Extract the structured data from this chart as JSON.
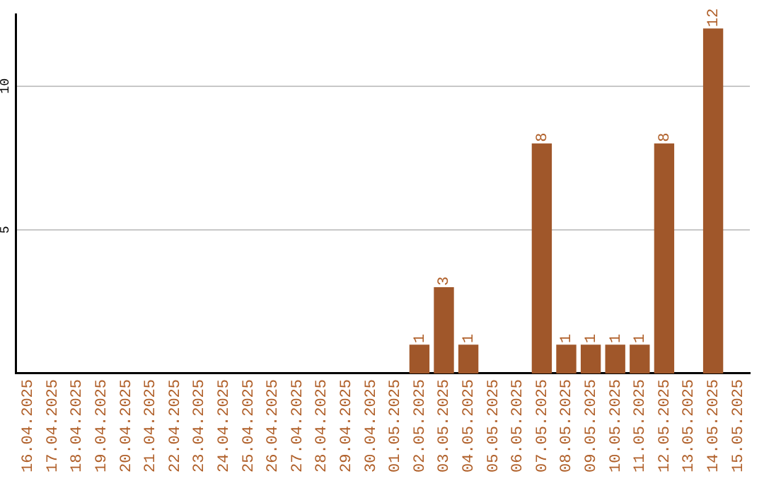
{
  "chart_data": {
    "type": "bar",
    "categories": [
      "16.04.2025",
      "17.04.2025",
      "18.04.2025",
      "19.04.2025",
      "20.04.2025",
      "21.04.2025",
      "22.04.2025",
      "23.04.2025",
      "24.04.2025",
      "25.04.2025",
      "26.04.2025",
      "27.04.2025",
      "28.04.2025",
      "29.04.2025",
      "30.04.2025",
      "01.05.2025",
      "02.05.2025",
      "03.05.2025",
      "04.05.2025",
      "05.05.2025",
      "06.05.2025",
      "07.05.2025",
      "08.05.2025",
      "09.05.2025",
      "10.05.2025",
      "11.05.2025",
      "12.05.2025",
      "13.05.2025",
      "14.05.2025",
      "15.05.2025"
    ],
    "values": [
      0,
      0,
      0,
      0,
      0,
      0,
      0,
      0,
      0,
      0,
      0,
      0,
      0,
      0,
      0,
      0,
      1,
      3,
      1,
      0,
      0,
      8,
      1,
      1,
      1,
      1,
      8,
      0,
      12,
      0
    ],
    "value_labels": [
      null,
      null,
      null,
      null,
      null,
      null,
      null,
      null,
      null,
      null,
      null,
      null,
      null,
      null,
      null,
      null,
      "1",
      "3",
      "1",
      null,
      null,
      "8",
      "1",
      "1",
      "1",
      "1",
      "8",
      null,
      "12",
      null
    ],
    "color": "#a0572a",
    "ylim": [
      0,
      12.5
    ],
    "yticks": [
      5,
      10
    ],
    "grid": "y",
    "legend": false
  }
}
